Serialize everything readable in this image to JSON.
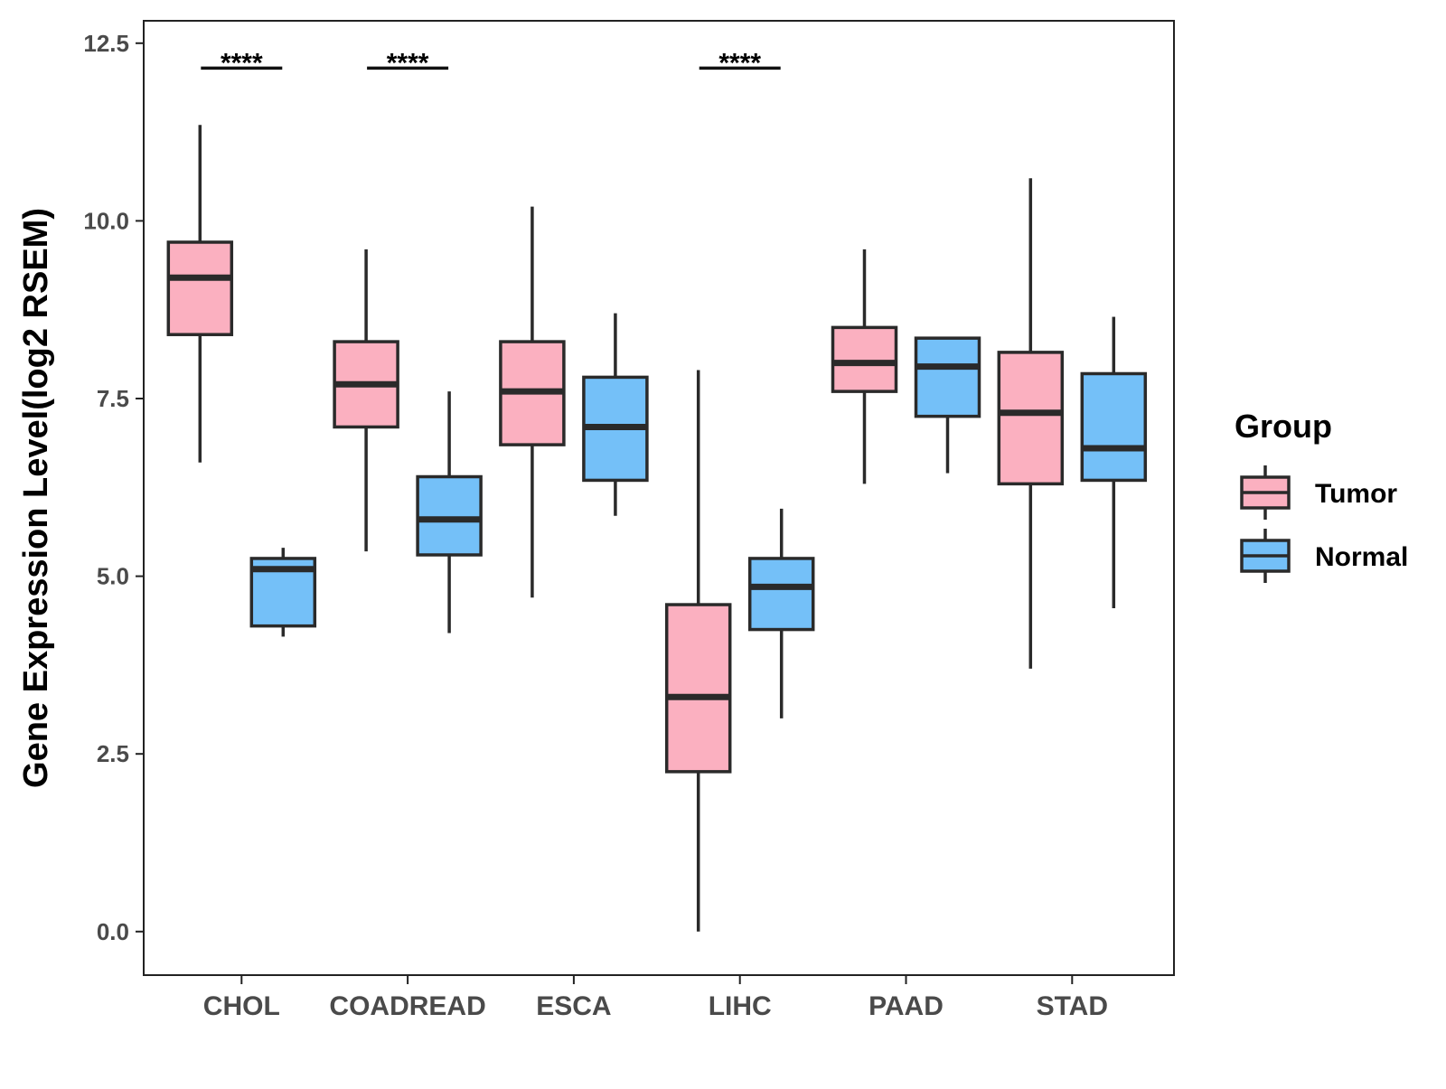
{
  "chart_data": {
    "type": "boxplot",
    "ylabel": "Gene Expression Level(log2 RSEM)",
    "xlabel": "",
    "ylim": [
      -0.6,
      12.85
    ],
    "yticks": [
      "0.0",
      "2.5",
      "5.0",
      "7.5",
      "10.0",
      "12.5"
    ],
    "categories": [
      "CHOL",
      "COADREAD",
      "ESCA",
      "LIHC",
      "PAAD",
      "STAD"
    ],
    "legend": {
      "title": "Group",
      "position": "right",
      "items": [
        {
          "label": "Tumor",
          "color": "#fbb0c0"
        },
        {
          "label": "Normal",
          "color": "#74c0f8"
        }
      ]
    },
    "series": [
      {
        "name": "Tumor",
        "color": "#fbb0c0",
        "boxes": [
          {
            "min": 6.6,
            "q1": 8.4,
            "median": 9.2,
            "q3": 9.7,
            "max": 11.35
          },
          {
            "min": 5.35,
            "q1": 7.1,
            "median": 7.7,
            "q3": 8.3,
            "max": 9.6
          },
          {
            "min": 4.7,
            "q1": 6.85,
            "median": 7.6,
            "q3": 8.3,
            "max": 10.2
          },
          {
            "min": 0.0,
            "q1": 2.25,
            "median": 3.3,
            "q3": 4.6,
            "max": 7.9
          },
          {
            "min": 6.3,
            "q1": 7.6,
            "median": 8.0,
            "q3": 8.5,
            "max": 9.6
          },
          {
            "min": 3.7,
            "q1": 6.3,
            "median": 7.3,
            "q3": 8.15,
            "max": 10.6
          }
        ]
      },
      {
        "name": "Normal",
        "color": "#74c0f8",
        "boxes": [
          {
            "min": 4.15,
            "q1": 4.3,
            "median": 5.1,
            "q3": 5.25,
            "max": 5.4
          },
          {
            "min": 4.2,
            "q1": 5.3,
            "median": 5.8,
            "q3": 6.4,
            "max": 7.6
          },
          {
            "min": 5.85,
            "q1": 6.35,
            "median": 7.1,
            "q3": 7.8,
            "max": 8.7
          },
          {
            "min": 3.0,
            "q1": 4.25,
            "median": 4.85,
            "q3": 5.25,
            "max": 5.95
          },
          {
            "min": 6.45,
            "q1": 7.25,
            "median": 7.95,
            "q3": 8.35,
            "max": 8.35
          },
          {
            "min": 4.55,
            "q1": 6.35,
            "median": 6.8,
            "q3": 7.85,
            "max": 8.65
          }
        ]
      }
    ],
    "annotations": [
      {
        "category": "CHOL",
        "text": "****",
        "y": 12.15
      },
      {
        "category": "COADREAD",
        "text": "****",
        "y": 12.15
      },
      {
        "category": "LIHC",
        "text": "****",
        "y": 12.15
      }
    ]
  }
}
